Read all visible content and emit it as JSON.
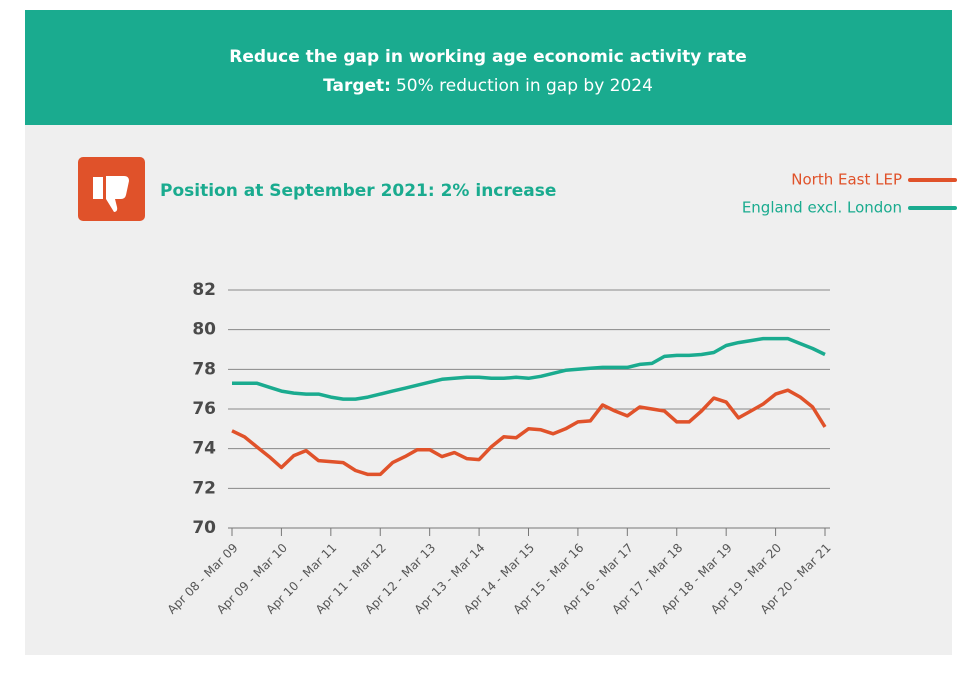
{
  "header": {
    "title": "Reduce the gap in working age economic activity rate",
    "target_label": "Target:",
    "target_text": "50% reduction in gap by 2024"
  },
  "status": "Position at September 2021: 2% increase",
  "chart_data": {
    "type": "line",
    "categories": [
      "Apr 08 - Mar 09",
      null,
      null,
      null,
      "Apr 09 - Mar 10",
      null,
      null,
      null,
      "Apr 10 - Mar 11",
      null,
      null,
      null,
      "Apr 11 - Mar 12",
      null,
      null,
      null,
      "Apr 12 - Mar 13",
      null,
      null,
      null,
      "Apr 13 - Mar 14",
      null,
      null,
      null,
      "Apr 14 - Mar 15",
      null,
      null,
      null,
      "Apr 15 - Mar 16",
      null,
      null,
      null,
      "Apr 16 - Mar 17",
      null,
      null,
      null,
      "Apr 17 - Mar 18",
      null,
      null,
      null,
      "Apr 18 - Mar 19",
      null,
      null,
      null,
      "Apr 19 - Mar 20",
      null,
      null,
      null,
      "Apr 20 - Mar 21"
    ],
    "series": [
      {
        "name": "North East LEP",
        "color": "#e0522a",
        "values": [
          74.9,
          74.6,
          74.1,
          73.6,
          73.05,
          73.65,
          73.9,
          73.4,
          73.35,
          73.3,
          72.9,
          72.7,
          72.7,
          73.3,
          73.6,
          73.95,
          73.95,
          73.6,
          73.8,
          73.5,
          73.45,
          74.1,
          74.6,
          74.55,
          75.0,
          74.95,
          74.75,
          75.0,
          75.35,
          75.4,
          76.2,
          75.9,
          75.65,
          76.1,
          76.0,
          75.9,
          75.35,
          75.35,
          75.9,
          76.55,
          76.35,
          75.55,
          75.9,
          76.25,
          76.75,
          76.95,
          76.6,
          76.1,
          75.1
        ]
      },
      {
        "name": "England excl. London",
        "color": "#1aab8f",
        "values": [
          77.3,
          77.3,
          77.3,
          77.1,
          76.9,
          76.8,
          76.75,
          76.75,
          76.6,
          76.5,
          76.5,
          76.6,
          76.75,
          76.9,
          77.05,
          77.2,
          77.35,
          77.5,
          77.55,
          77.6,
          77.6,
          77.55,
          77.55,
          77.6,
          77.55,
          77.65,
          77.8,
          77.95,
          78.0,
          78.05,
          78.1,
          78.1,
          78.1,
          78.25,
          78.3,
          78.65,
          78.7,
          78.7,
          78.75,
          78.85,
          79.2,
          79.35,
          79.45,
          79.55,
          79.55,
          79.55,
          79.3,
          79.05,
          78.75
        ]
      }
    ],
    "ylim": [
      70,
      82
    ],
    "yticks": [
      70,
      72,
      74,
      76,
      78,
      80,
      82
    ],
    "grid": true,
    "legend": "top-right"
  }
}
